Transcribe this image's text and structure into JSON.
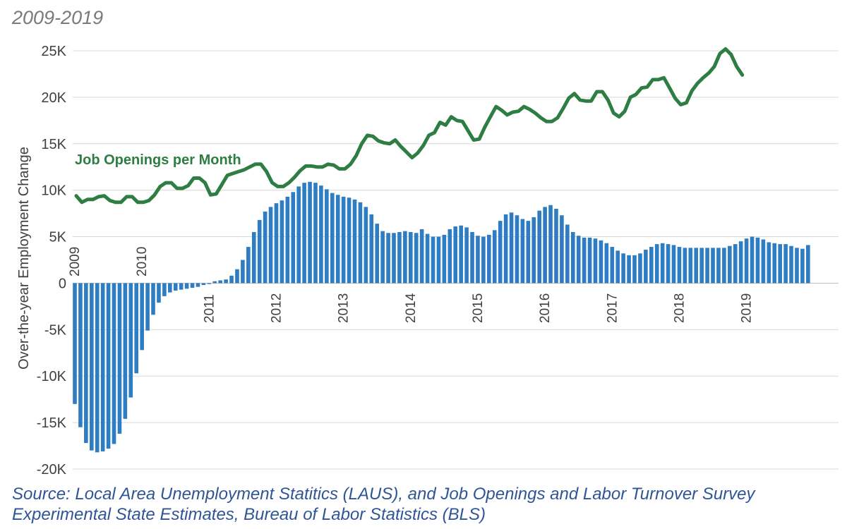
{
  "title_fragment": "",
  "subtitle": "2009-2019",
  "source": {
    "line1": "Source: Local Area Unemployment Statitics (LAUS), and Job Openings and Labor Turnover Survey",
    "line2": "Experimental State Estimates, Bureau of Labor Statistics (BLS)"
  },
  "colors": {
    "bars": "#2e7dc2",
    "line": "#2e7d43",
    "grid": "#d9d9d9",
    "text": "#404040",
    "source": "#2f5597"
  },
  "chart_data": {
    "type": "bar",
    "ylabel": "Over-the-year Employment Change",
    "ylim": [
      -20000,
      25000
    ],
    "ytick_labels": [
      "25K",
      "20K",
      "15K",
      "10K",
      "5K",
      "0",
      "-5K",
      "-10K",
      "-15K",
      "-20K"
    ],
    "ytick_values": [
      25000,
      20000,
      15000,
      10000,
      5000,
      0,
      -5000,
      -10000,
      -15000,
      -20000
    ],
    "year_labels": [
      "2009",
      "2010",
      "2011",
      "2012",
      "2013",
      "2014",
      "2015",
      "2016",
      "2017",
      "2018",
      "2019"
    ],
    "grid": true,
    "series": [
      {
        "name": "",
        "kind": "bar",
        "start": "2009-01",
        "values": [
          -13000,
          -15500,
          -17200,
          -18000,
          -18200,
          -18100,
          -17800,
          -17300,
          -16200,
          -14600,
          -12300,
          -9700,
          -7200,
          -5100,
          -3400,
          -2100,
          -1400,
          -1000,
          -800,
          -700,
          -600,
          -500,
          -400,
          -200,
          -100,
          200,
          300,
          400,
          800,
          1500,
          2500,
          3900,
          5500,
          6800,
          7700,
          8200,
          8600,
          8900,
          9300,
          9800,
          10400,
          10800,
          10900,
          10800,
          10500,
          10100,
          9700,
          9500,
          9300,
          9200,
          9000,
          8700,
          8200,
          7400,
          6400,
          5600,
          5400,
          5400,
          5500,
          5600,
          5500,
          5400,
          5800,
          5300,
          5000,
          5000,
          5200,
          5800,
          6100,
          6200,
          6000,
          5500,
          5100,
          5000,
          5200,
          5700,
          6700,
          7400,
          7600,
          7300,
          6900,
          6700,
          7100,
          7800,
          8200,
          8400,
          8000,
          7300,
          6300,
          5500,
          5100,
          4900,
          4900,
          4800,
          4600,
          4300,
          3900,
          3500,
          3200,
          3000,
          3000,
          3200,
          3600,
          3900,
          4200,
          4300,
          4200,
          4100,
          3900,
          3800,
          3800,
          3800,
          3800,
          3800,
          3800,
          3800,
          3800,
          4000,
          4200,
          4500,
          4800,
          5000,
          4900,
          4700,
          4400,
          4300,
          4200,
          4200,
          4000,
          3800,
          3700,
          4100
        ]
      },
      {
        "name": "Job Openings per Month",
        "kind": "line",
        "start": "2009-01",
        "values": [
          9400,
          8700,
          9000,
          9000,
          9300,
          9400,
          8900,
          8700,
          8700,
          9300,
          9300,
          8700,
          8700,
          8900,
          9500,
          10400,
          10800,
          10800,
          10200,
          10200,
          10500,
          11300,
          11300,
          10800,
          9500,
          9600,
          10600,
          11600,
          11800,
          12000,
          12200,
          12500,
          12800,
          12800,
          12000,
          10800,
          10400,
          10400,
          10800,
          11400,
          12100,
          12600,
          12600,
          12500,
          12500,
          12800,
          12700,
          12300,
          12300,
          12800,
          13700,
          15000,
          15900,
          15800,
          15300,
          15100,
          15000,
          15400,
          14700,
          14100,
          13500,
          14000,
          14800,
          15900,
          16200,
          17300,
          17000,
          17900,
          17500,
          17400,
          16400,
          15400,
          15500,
          16800,
          17900,
          19000,
          18600,
          18100,
          18400,
          18500,
          19000,
          18700,
          18300,
          17800,
          17400,
          17400,
          17800,
          18800,
          19900,
          20400,
          19700,
          19600,
          19600,
          20600,
          20600,
          19700,
          18300,
          17900,
          18500,
          20000,
          20300,
          21000,
          21100,
          21900,
          21900,
          22100,
          21000,
          19900,
          19200,
          19400,
          20700,
          21500,
          22100,
          22600,
          23300,
          24700,
          25200,
          24600,
          23300,
          22400
        ]
      }
    ]
  }
}
